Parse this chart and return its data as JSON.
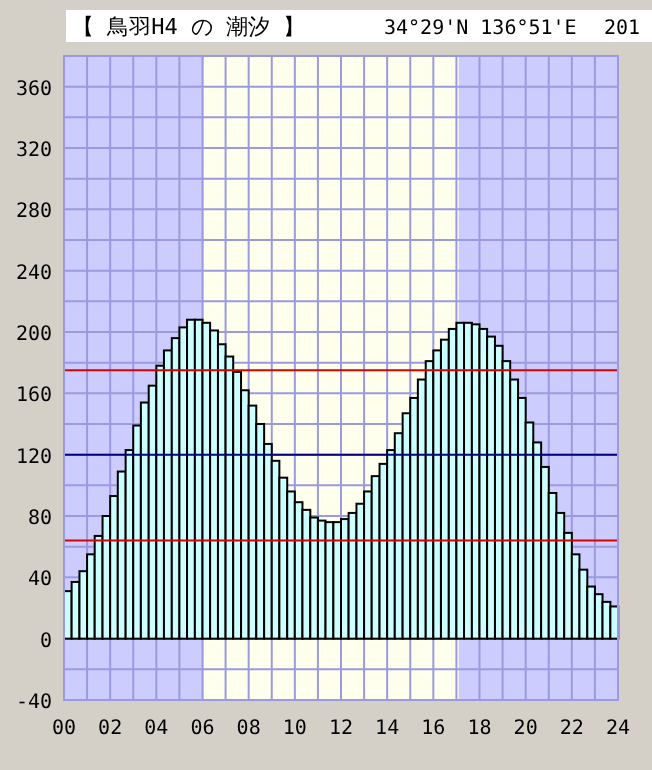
{
  "chart_data": {
    "type": "bar",
    "title": "【 鳥羽H4 の 潮汐 】",
    "subtitle": "34°29'N 136°51'E",
    "annotations": [
      "201"
    ],
    "x": [
      0,
      0.33,
      0.67,
      1,
      1.33,
      1.67,
      2,
      2.33,
      2.67,
      3,
      3.33,
      3.67,
      4,
      4.33,
      4.67,
      5,
      5.33,
      5.67,
      6,
      6.33,
      6.67,
      7,
      7.33,
      7.67,
      8,
      8.33,
      8.67,
      9,
      9.33,
      9.67,
      10,
      10.33,
      10.67,
      11,
      11.33,
      11.67,
      12,
      12.33,
      12.67,
      13,
      13.33,
      13.67,
      14,
      14.33,
      14.67,
      15,
      15.33,
      15.67,
      16,
      16.33,
      16.67,
      17,
      17.33,
      17.67,
      18,
      18.33,
      18.67,
      19,
      19.33,
      19.67,
      20,
      20.33,
      20.67,
      21,
      21.33,
      21.67,
      22,
      22.33,
      22.67,
      23,
      23.33,
      23.67
    ],
    "values": [
      31,
      37,
      44,
      55,
      67,
      80,
      93,
      109,
      123,
      139,
      154,
      165,
      178,
      188,
      196,
      203,
      208,
      208,
      206,
      201,
      192,
      184,
      174,
      162,
      152,
      140,
      127,
      116,
      105,
      96,
      89,
      84,
      79,
      77,
      76,
      76,
      78,
      82,
      88,
      96,
      106,
      114,
      123,
      134,
      147,
      157,
      169,
      181,
      188,
      195,
      202,
      206,
      206,
      205,
      202,
      197,
      191,
      181,
      169,
      157,
      141,
      128,
      112,
      95,
      82,
      69,
      55,
      45,
      34,
      29,
      24,
      21
    ],
    "color": "#ccffff",
    "xlim": [
      0,
      24
    ],
    "xticks": [
      {
        "value": 0,
        "label": "00"
      },
      {
        "value": 2,
        "label": "02"
      },
      {
        "value": 4,
        "label": "04"
      },
      {
        "value": 6,
        "label": "06"
      },
      {
        "value": 8,
        "label": "08"
      },
      {
        "value": 10,
        "label": "10"
      },
      {
        "value": 12,
        "label": "12"
      },
      {
        "value": 14,
        "label": "14"
      },
      {
        "value": 16,
        "label": "16"
      },
      {
        "value": 18,
        "label": "18"
      },
      {
        "value": 20,
        "label": "20"
      },
      {
        "value": 22,
        "label": "22"
      },
      {
        "value": 24,
        "label": "24"
      }
    ],
    "ylim": [
      -40,
      380
    ],
    "yticks": [
      -40,
      0,
      40,
      80,
      120,
      160,
      200,
      240,
      280,
      320,
      360
    ],
    "grid": true,
    "bands": [
      {
        "axis": "x",
        "from": 0,
        "to": 6.05,
        "color": "#ccccff"
      },
      {
        "axis": "x",
        "from": 17.1,
        "to": 24,
        "color": "#ccccff"
      }
    ],
    "ref_lines": [
      {
        "axis": "y",
        "value": 175,
        "color": "#dd0000"
      },
      {
        "axis": "y",
        "value": 120,
        "color": "#000080"
      },
      {
        "axis": "y",
        "value": 64,
        "color": "#dd0000"
      }
    ]
  }
}
